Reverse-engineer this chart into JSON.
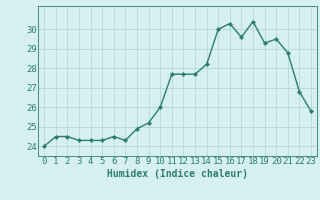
{
  "x": [
    0,
    1,
    2,
    3,
    4,
    5,
    6,
    7,
    8,
    9,
    10,
    11,
    12,
    13,
    14,
    15,
    16,
    17,
    18,
    19,
    20,
    21,
    22,
    23
  ],
  "y": [
    24.0,
    24.5,
    24.5,
    24.3,
    24.3,
    24.3,
    24.5,
    24.3,
    24.9,
    25.2,
    26.0,
    27.7,
    27.7,
    27.7,
    28.2,
    30.0,
    30.3,
    29.6,
    30.4,
    29.3,
    29.5,
    28.8,
    26.8,
    25.8
  ],
  "xlabel": "Humidex (Indice chaleur)",
  "line_color": "#2e7d6e",
  "marker": "D",
  "marker_size": 2.0,
  "line_width": 1.0,
  "bg_color": "#d6f0ef",
  "grid_color": "#b8dcd9",
  "tick_color": "#2e7d6e",
  "label_color": "#2e7d6e",
  "ylim": [
    23.5,
    31.2
  ],
  "yticks": [
    24,
    25,
    26,
    27,
    28,
    29,
    30
  ],
  "xlim": [
    -0.5,
    23.5
  ],
  "xlabel_fontsize": 7,
  "tick_fontsize": 6.5
}
